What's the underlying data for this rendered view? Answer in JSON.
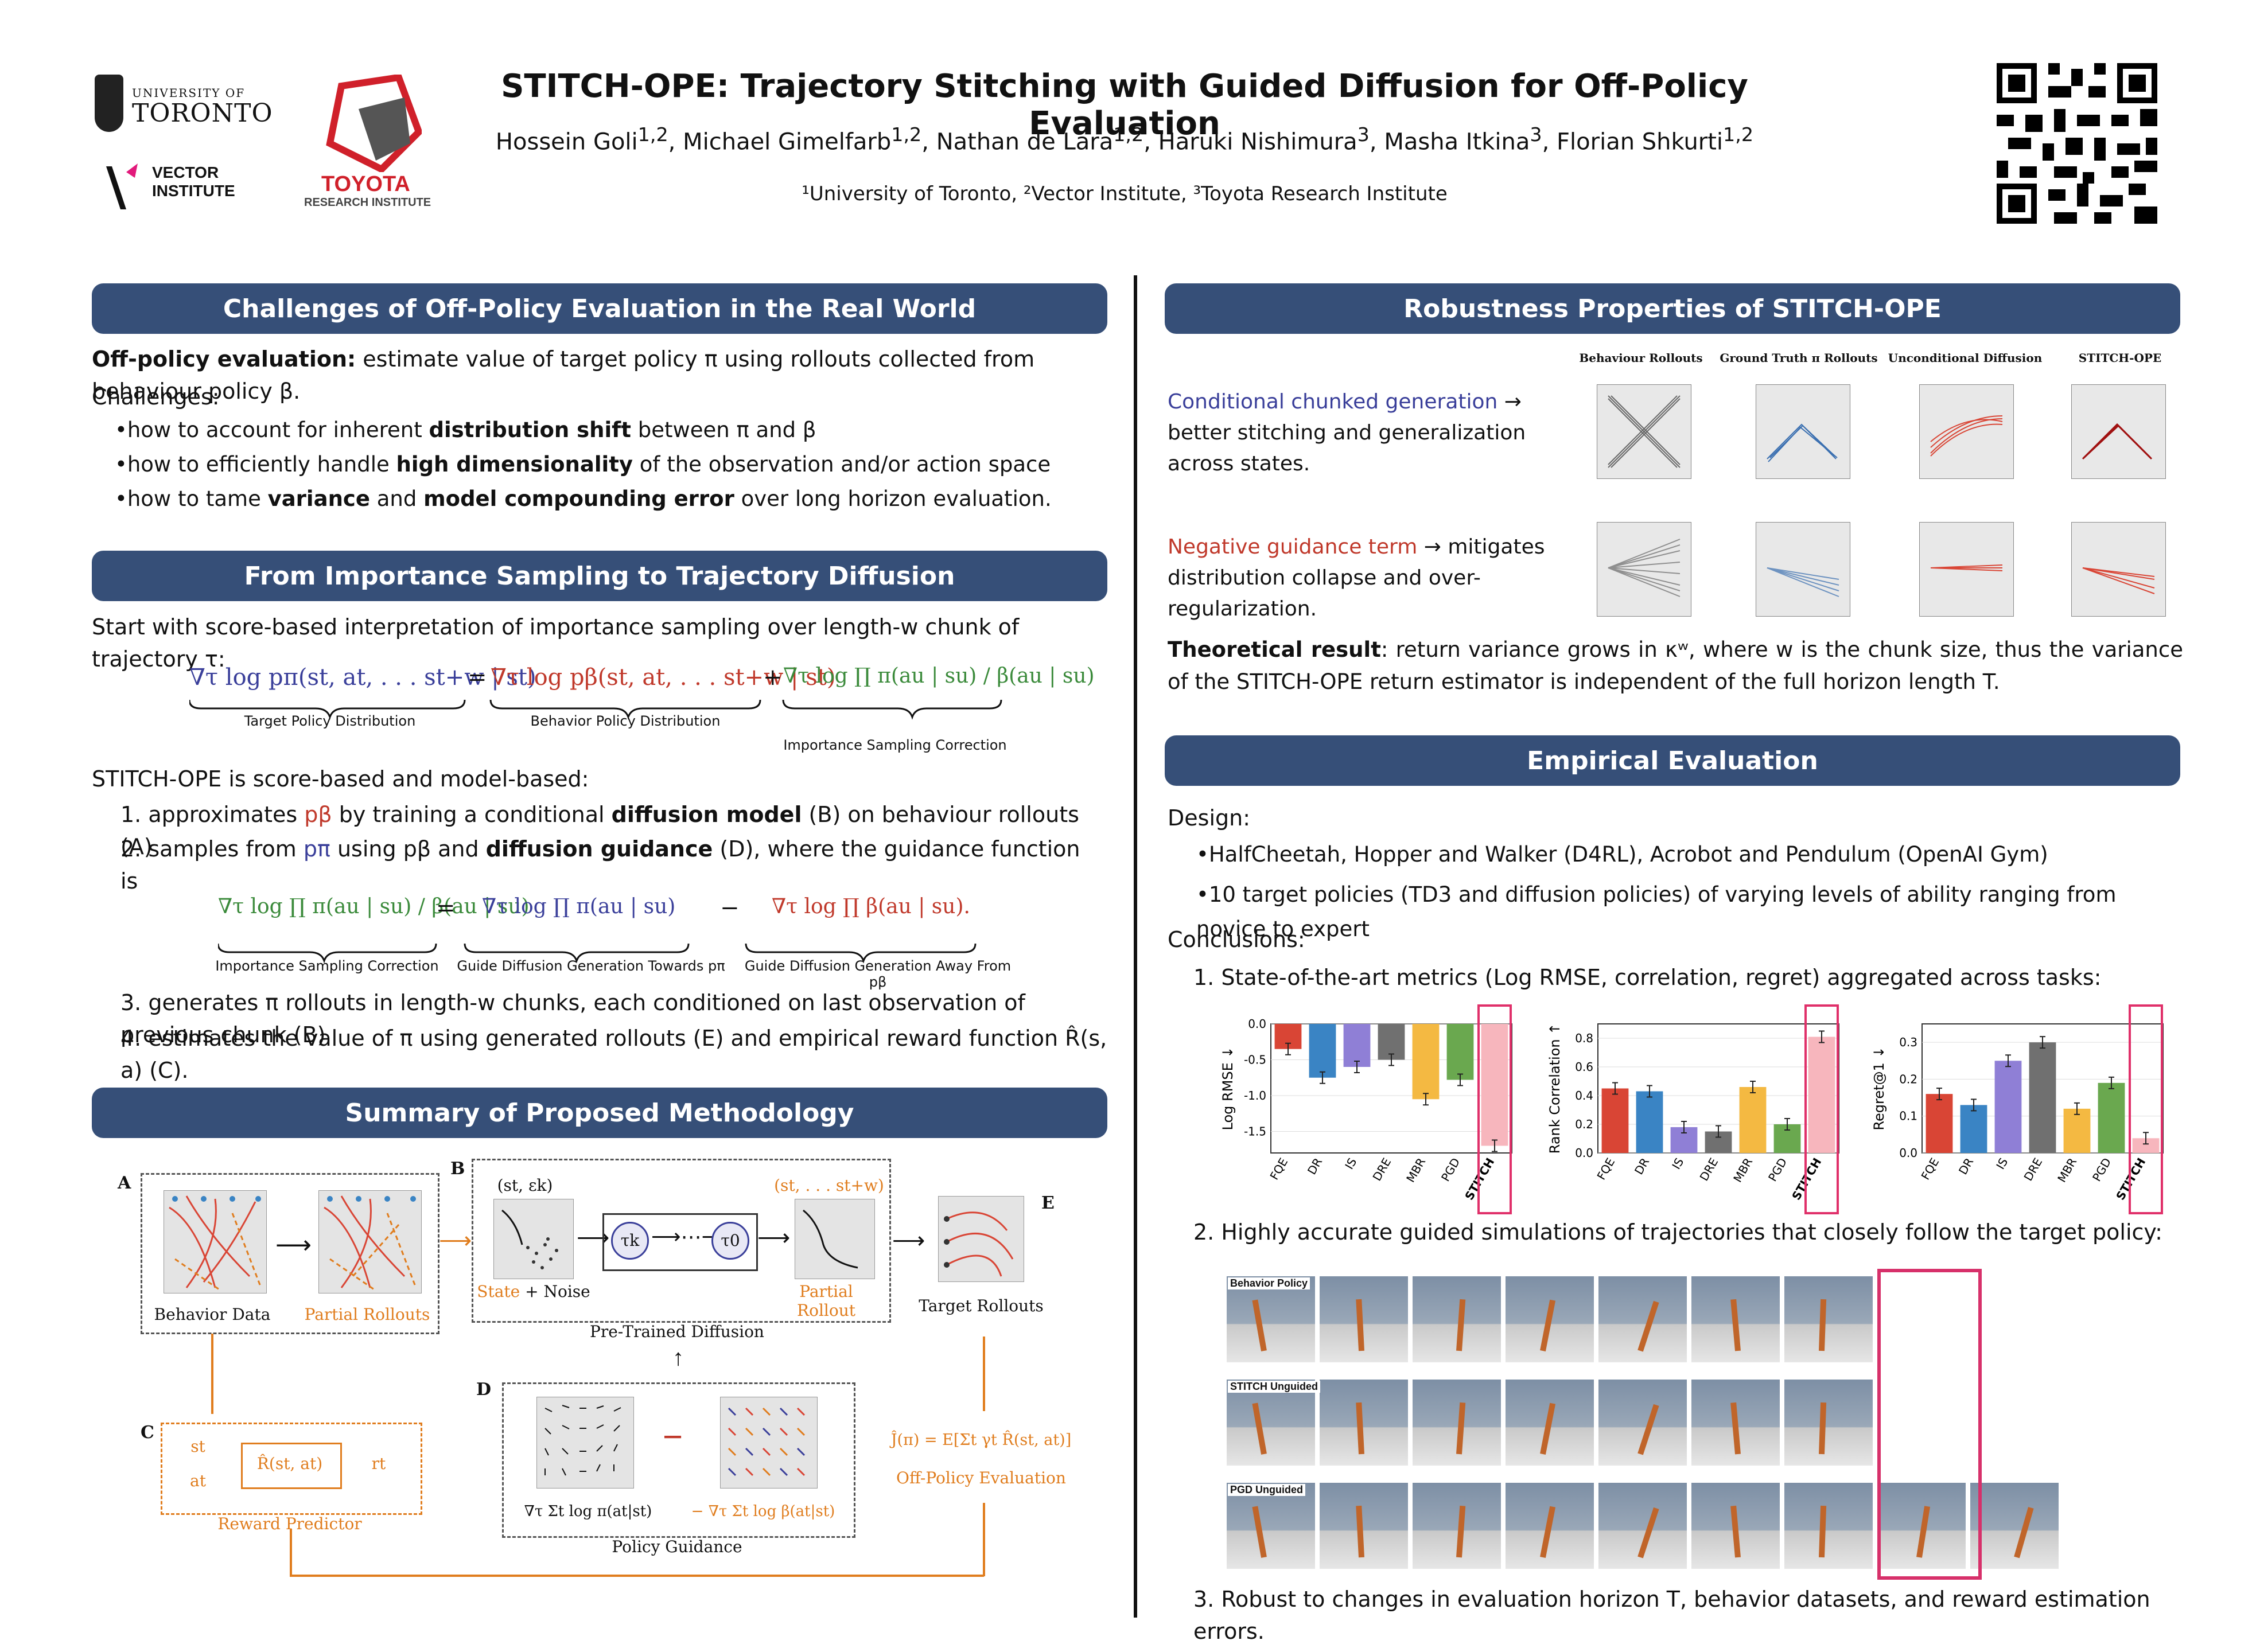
{
  "header": {
    "title": "STITCH-OPE: Trajectory Stitching with Guided Diffusion for Off-Policy Evaluation",
    "authors": [
      "Hossein Goli",
      "Michael Gimelfarb",
      "Nathan de Lara",
      "Haruki Nishimura",
      "Masha Itkina",
      "Florian Shkurti"
    ],
    "author_sups": [
      "1,2",
      "1,2",
      "1,2",
      "3",
      "3",
      "1,2"
    ],
    "affiliations": "¹University of Toronto, ²Vector Institute, ³Toyota Research Institute",
    "logo_uoft_small": "UNIVERSITY OF",
    "logo_uoft_big": "TORONTO",
    "logo_vector": "VECTOR INSTITUTE",
    "logo_toyota": "TOYOTA",
    "logo_toyota_sub": "RESEARCH INSTITUTE"
  },
  "challenges": {
    "heading": "Challenges of Off-Policy Evaluation in the Real World",
    "ope_bold": "Off-policy evaluation:",
    "ope_text": " estimate value of target policy π using rollouts collected from behaviour policy β.",
    "challenges_label": "Challenges:",
    "b1_pre": "how to account for inherent ",
    "b1_bold": "distribution shift",
    "b1_post": " between π and β",
    "b2_pre": "how to efficiently handle ",
    "b2_bold": "high dimensionality",
    "b2_post": " of the observation and/or action space",
    "b3_pre": "how to tame ",
    "b3_bold1": "variance",
    "b3_mid": " and ",
    "b3_bold2": "model compounding error",
    "b3_post": " over long horizon evaluation."
  },
  "importance": {
    "heading": "From Importance Sampling to Trajectory Diffusion",
    "intro": "Start with score-based interpretation of importance sampling over length-w chunk of trajectory τ:",
    "eq1_a": "∇τ log pπ(st, at, . . . st+w | st)",
    "eq1_b": "∇τ log pβ(st, at, . . . st+w | st)",
    "eq1_c": "∇τ log ∏ π(au | su) / β(au | su)",
    "lbl_target": "Target Policy Distribution",
    "lbl_behavior": "Behavior Policy Distribution",
    "lbl_isc": "Importance Sampling Correction",
    "model_based": "STITCH-OPE is score-based and model-based:",
    "s1_pre": "1. approximates ",
    "s1_p": "pβ",
    "s1_mid": " by training a conditional ",
    "s1_bold": "diffusion model",
    "s1_post": " (B) on behaviour rollouts (A)",
    "s2_pre": "2. samples from ",
    "s2_p": "pπ",
    "s2_mid": " using pβ and ",
    "s2_bold": "diffusion guidance",
    "s2_post": " (D), where the guidance function is",
    "eq2_a": "∇τ log ∏ π(au | su) / β(au | su)",
    "eq2_b": "∇τ log ∏ π(au | su)",
    "eq2_c": "∇τ log ∏ β(au | su).",
    "lbl_isc2": "Importance Sampling Correction",
    "lbl_towards": "Guide Diffusion Generation Towards pπ",
    "lbl_away": "Guide Diffusion Generation Away From pβ",
    "s3": "3. generates π rollouts in length-w chunks, each conditioned on last observation of previous chunk (B)",
    "s4": "4. estimates the value of π using generated rollouts (E) and empirical reward function R̂(s, a) (C)."
  },
  "methodology": {
    "heading": "Summary of Proposed Methodology",
    "A": "A",
    "B": "B",
    "C": "C",
    "D": "D",
    "E": "E",
    "behavior_data": "Behavior Data",
    "partial_rollouts": "Partial Rollouts",
    "state_noise_pre": "State",
    "state_noise_post": " + Noise",
    "st_ek": "(st, εk)",
    "st_stw": "(st, . . . st+w)",
    "partial_rollout": "Partial Rollout",
    "tau_k": "τk",
    "tau_0": "τ0",
    "pretrained": "Pre-Trained Diffusion",
    "target_rollouts": "Target Rollouts",
    "st": "st",
    "at": "at",
    "rt": "rt",
    "rhat": "R̂(st, at)",
    "reward_predictor": "Reward Predictor",
    "jhat": "Ĵ(π) = E[Σt γt R̂(st, at)]",
    "ope": "Off-Policy Evaluation",
    "grad_pi": "∇τ Σt log π(at|st)",
    "grad_beta": "− ∇τ Σt log β(at|st)",
    "minus": "−",
    "policy_guidance": "Policy Guidance"
  },
  "robustness": {
    "heading": "Robustness Properties of STITCH-OPE",
    "col_titles": [
      "Behaviour Rollouts",
      "Ground Truth π Rollouts",
      "Unconditional Diffusion",
      "STITCH-OPE"
    ],
    "r1_colored": "Conditional chunked generation",
    "r1_rest": " → better stitching and generalization across states.",
    "r2_colored": "Negative guidance term",
    "r2_rest": " → mitigates distribution collapse and over-regularization.",
    "theory_bold": "Theoretical result",
    "theory_text": ": return variance grows in κʷ, where w is the chunk size, thus the variance of the STITCH-OPE return estimator is independent of the full horizon length T."
  },
  "empirical": {
    "heading": "Empirical Evaluation",
    "design": "Design:",
    "d1": "HalfCheetah, Hopper and Walker (D4RL), Acrobot and Pendulum (OpenAI Gym)",
    "d2": "10 target policies (TD3 and diffusion policies) of varying levels of ability ranging from novice to expert",
    "conclusions": "Conclusions:",
    "c1": "1. State-of-the-art metrics (Log RMSE, correlation, regret) aggregated across tasks:",
    "c2": "2. Highly accurate guided simulations of trajectories that closely follow the target policy:",
    "c3": "3. Robust to changes in evaluation horizon T, behavior datasets, and reward estimation errors.",
    "sim_labels": [
      "Behavior Policy",
      "STITCH Unguided",
      "PGD Unguided"
    ]
  },
  "chart_data": [
    {
      "type": "bar",
      "categories": [
        "FQE",
        "DR",
        "IS",
        "DRE",
        "MBR",
        "PGD",
        "STITCH"
      ],
      "values": [
        -0.35,
        -0.75,
        -0.6,
        -0.5,
        -1.05,
        -0.78,
        -1.7
      ],
      "ylabel": "Log RMSE ↓",
      "ylim": [
        -1.8,
        0.0
      ],
      "yticks": [
        "0.0",
        "-0.5",
        "-1.0",
        "-1.5"
      ],
      "colors": [
        "#d94535",
        "#3a84c4",
        "#8f7fd6",
        "#707070",
        "#f4b942",
        "#6aa84f",
        "#f7b6bd"
      ]
    },
    {
      "type": "bar",
      "categories": [
        "FQE",
        "DR",
        "IS",
        "DRE",
        "MBR",
        "PGD",
        "STITCH"
      ],
      "values": [
        0.45,
        0.43,
        0.18,
        0.15,
        0.46,
        0.2,
        0.81
      ],
      "ylabel": "Rank Correlation ↑",
      "ylim": [
        0.0,
        0.9
      ],
      "yticks": [
        "0.0",
        "0.2",
        "0.4",
        "0.6",
        "0.8"
      ],
      "colors": [
        "#d94535",
        "#3a84c4",
        "#8f7fd6",
        "#707070",
        "#f4b942",
        "#6aa84f",
        "#f7b6bd"
      ]
    },
    {
      "type": "bar",
      "categories": [
        "FQE",
        "DR",
        "IS",
        "DRE",
        "MBR",
        "PGD",
        "STITCH"
      ],
      "values": [
        0.16,
        0.13,
        0.25,
        0.3,
        0.12,
        0.19,
        0.04
      ],
      "ylabel": "Regret@1 ↓",
      "ylim": [
        0.0,
        0.35
      ],
      "yticks": [
        "0.0",
        "0.1",
        "0.2",
        "0.3"
      ],
      "colors": [
        "#d94535",
        "#3a84c4",
        "#8f7fd6",
        "#707070",
        "#f4b942",
        "#6aa84f",
        "#f7b6bd"
      ]
    }
  ]
}
